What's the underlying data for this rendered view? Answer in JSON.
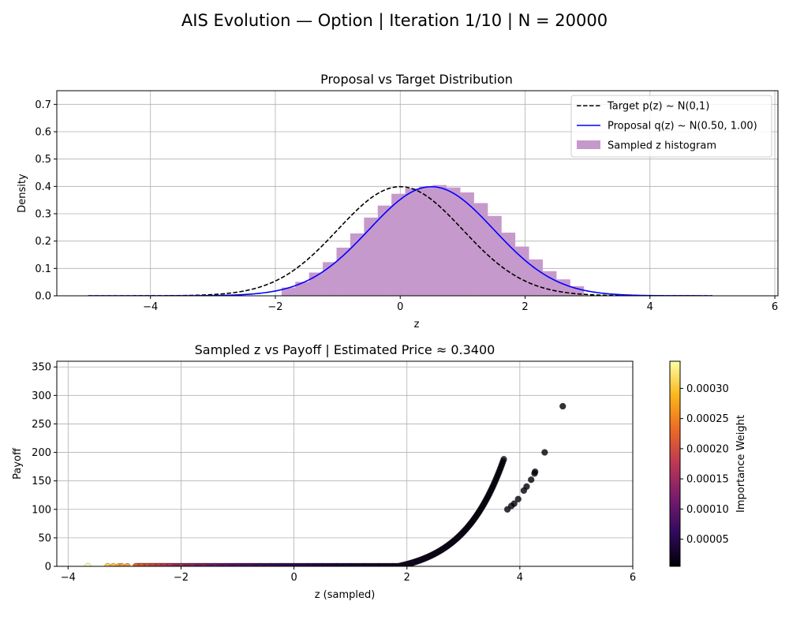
{
  "figure": {
    "suptitle": "AIS Evolution — Option | Iteration 1/10 | N = 20000"
  },
  "chart_data": [
    {
      "type": "line",
      "title": "Proposal vs Target Distribution",
      "xlabel": "z",
      "ylabel": "Density",
      "xlim": [
        -5.5,
        6.05
      ],
      "ylim": [
        0,
        0.75
      ],
      "xticks": [
        -4,
        -2,
        0,
        2,
        4,
        6
      ],
      "yticks": [
        0.0,
        0.1,
        0.2,
        0.3,
        0.4,
        0.5,
        0.6,
        0.7
      ],
      "grid": true,
      "legend_position": "top-right",
      "target": {
        "label": "Target p(z) ~ N(0,1)",
        "mean": 0,
        "std": 1,
        "style": "dashed",
        "color": "#000000"
      },
      "proposal": {
        "label": "Proposal q(z) ~ N(0.50, 1.00)",
        "mean": 0.5,
        "std": 1.0,
        "style": "solid",
        "color": "#0000ff"
      },
      "histogram": {
        "label": "Sampled z histogram",
        "color": "#c699cc",
        "bin_edges": [
          -1.9,
          -1.68,
          -1.46,
          -1.24,
          -1.02,
          -0.8,
          -0.58,
          -0.36,
          -0.14,
          0.08,
          0.3,
          0.52,
          0.74,
          0.96,
          1.18,
          1.4,
          1.62,
          1.84,
          2.06,
          2.28,
          2.5,
          2.72,
          2.94
        ],
        "densities": [
          0.03,
          0.051,
          0.085,
          0.123,
          0.176,
          0.228,
          0.286,
          0.33,
          0.373,
          0.393,
          0.4,
          0.405,
          0.396,
          0.378,
          0.339,
          0.292,
          0.231,
          0.18,
          0.133,
          0.09,
          0.06,
          0.035
        ]
      },
      "curve_range": [
        -5,
        5
      ]
    },
    {
      "type": "scatter",
      "title": "Sampled z vs Payoff | Estimated Price ≈ 0.3400",
      "xlabel": "z (sampled)",
      "ylabel": "Payoff",
      "xlim": [
        -4.2,
        6.0
      ],
      "ylim": [
        0,
        360
      ],
      "xticks": [
        -4,
        -2,
        0,
        2,
        4,
        6
      ],
      "yticks": [
        0,
        50,
        100,
        150,
        200,
        250,
        300,
        350
      ],
      "grid": true,
      "payoff_curve": {
        "threshold": 1.85,
        "scale": 15.5
      },
      "points": [
        {
          "z": -3.65,
          "payoff": 0.0
        },
        {
          "z": -3.3,
          "payoff": 0.0
        },
        {
          "z": -3.2,
          "payoff": 0.0
        },
        {
          "z": -3.1,
          "payoff": 0.0
        },
        {
          "z": -3.05,
          "payoff": 0.0
        },
        {
          "z": -2.95,
          "payoff": 0.0
        },
        {
          "z": -2.8,
          "payoff": 0.0
        },
        {
          "z": -2.7,
          "payoff": 0.0
        },
        {
          "z": -2.6,
          "payoff": 0.0
        },
        {
          "z": -2.5,
          "payoff": 0.0
        },
        {
          "z": -2.4,
          "payoff": 0.0
        },
        {
          "z": -2.3,
          "payoff": 0.0
        },
        {
          "z": -2.2,
          "payoff": 0.0
        },
        {
          "z": -2.0,
          "payoff": 0.0
        },
        {
          "z": -1.8,
          "payoff": 0.0
        },
        {
          "z": -1.6,
          "payoff": 0.0
        },
        {
          "z": -1.4,
          "payoff": 0.0
        },
        {
          "z": -1.2,
          "payoff": 0.0
        },
        {
          "z": -1.0,
          "payoff": 0.0
        },
        {
          "z": -0.8,
          "payoff": 0.0
        },
        {
          "z": -0.6,
          "payoff": 0.0
        },
        {
          "z": -0.4,
          "payoff": 0.0
        },
        {
          "z": -0.2,
          "payoff": 0.0
        },
        {
          "z": 0.0,
          "payoff": 0.0
        },
        {
          "z": 0.25,
          "payoff": 0.0
        },
        {
          "z": 0.5,
          "payoff": 0.0
        },
        {
          "z": 0.75,
          "payoff": 0.0
        },
        {
          "z": 1.0,
          "payoff": 0.0
        },
        {
          "z": 1.25,
          "payoff": 0.0
        },
        {
          "z": 1.5,
          "payoff": 0.0
        },
        {
          "z": 1.75,
          "payoff": 0.0
        },
        {
          "z": 3.78,
          "payoff": 100
        },
        {
          "z": 3.85,
          "payoff": 106
        },
        {
          "z": 3.9,
          "payoff": 110
        },
        {
          "z": 3.97,
          "payoff": 118
        },
        {
          "z": 4.07,
          "payoff": 133
        },
        {
          "z": 4.12,
          "payoff": 140
        },
        {
          "z": 4.2,
          "payoff": 152
        },
        {
          "z": 4.26,
          "payoff": 163
        },
        {
          "z": 4.27,
          "payoff": 166
        },
        {
          "z": 4.44,
          "payoff": 200
        },
        {
          "z": 4.76,
          "payoff": 281
        }
      ],
      "colorbar": {
        "label": "Importance Weight",
        "min": 5e-06,
        "max": 0.000345,
        "ticks": [
          5e-05,
          0.0001,
          0.00015,
          0.0002,
          0.00025,
          0.0003
        ],
        "tick_labels": [
          "0.00005",
          "0.00010",
          "0.00015",
          "0.00020",
          "0.00025",
          "0.00030"
        ],
        "colormap": "inferno",
        "stops": [
          "#000004",
          "#320a5e",
          "#781c6d",
          "#bc3754",
          "#ed6925",
          "#fbb61a",
          "#fcffa4"
        ]
      }
    }
  ]
}
